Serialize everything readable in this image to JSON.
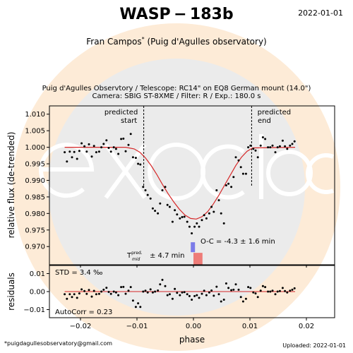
{
  "header": {
    "title": "WASP − 183b",
    "date": "2022-01-01",
    "observer": "Fran Campos",
    "observer_mark": "*",
    "observatory": "(Puig d'Agulles observatory)",
    "setup_line1": "Puig d'Agulles Observtory / Telescope: RC14\" on EQ8 German mount (14.0\")",
    "setup_line2": "Camera: SBIG ST-8XME / Filter: R / Exp.: 180.0 s"
  },
  "footer": {
    "email": "*puigdagullesobservatory@gmail.com",
    "uploaded": "Uploaded: 2022-01-01"
  },
  "watermark": {
    "text": "exoclock",
    "colors": {
      "ring": "#fdebd7",
      "disc": "#ebebeb",
      "letters": "#ffffff"
    }
  },
  "colors": {
    "model": "#d62728",
    "points": "#000000",
    "oc_bar": "#7b7be8",
    "tmid_bar": "#ee7c78",
    "zero_line": "#d62728"
  },
  "chart_data": [
    {
      "type": "scatter",
      "name": "lightcurve",
      "xlabel": "",
      "ylabel": "relative flux (de-trended)",
      "xlim": [
        -0.0255,
        0.025
      ],
      "ylim": [
        0.9645,
        1.0125
      ],
      "yticks": [
        "0.970",
        "0.975",
        "0.980",
        "0.985",
        "0.990",
        "0.995",
        "1.000",
        "1.005",
        "1.010"
      ],
      "ytick_values": [
        0.97,
        0.975,
        0.98,
        0.985,
        0.99,
        0.995,
        1.0,
        1.005,
        1.01
      ],
      "predicted_start": {
        "x": -0.0088,
        "label_line1": "predicted",
        "label_line2": "start"
      },
      "predicted_end": {
        "x": 0.0103,
        "label_line1": "predicted",
        "label_line2": "end"
      },
      "oc_text": "O-C = -4.3 ± 1.6 min",
      "tmid_text": "± 4.7 min",
      "tmid_label": "T",
      "tmid_sup": "pred.",
      "tmid_sub": "mid",
      "oc_bar": {
        "x": -0.0001,
        "y_bottom": 0.9683,
        "y_top": 0.9713
      },
      "tmid_bar": {
        "x0": 0.0,
        "x1": 0.0016,
        "y_bottom": 0.9641,
        "y_top": 0.9681
      },
      "model": {
        "x": [
          -0.0228,
          -0.012,
          -0.0105,
          -0.0095,
          -0.0085,
          -0.0075,
          -0.0065,
          -0.0055,
          -0.0045,
          -0.0035,
          -0.0025,
          -0.0015,
          -0.0005,
          0.0005,
          0.0015,
          0.0025,
          0.0035,
          0.0045,
          0.0055,
          0.0065,
          0.0075,
          0.0085,
          0.0095,
          0.0105,
          0.018
        ],
        "y": [
          1.0,
          1.0,
          0.9995,
          0.9985,
          0.9968,
          0.9945,
          0.9918,
          0.9888,
          0.986,
          0.9835,
          0.9813,
          0.9795,
          0.9785,
          0.9783,
          0.979,
          0.9805,
          0.9828,
          0.9855,
          0.9885,
          0.9915,
          0.9945,
          0.997,
          0.9988,
          0.9998,
          1.0
        ]
      },
      "points": {
        "x": [
          -0.0228,
          -0.0224,
          -0.0219,
          -0.0215,
          -0.0211,
          -0.0206,
          -0.0202,
          -0.0198,
          -0.0193,
          -0.0189,
          -0.0185,
          -0.018,
          -0.0176,
          -0.0172,
          -0.0167,
          -0.0163,
          -0.0159,
          -0.0154,
          -0.015,
          -0.0146,
          -0.0141,
          -0.0137,
          -0.0133,
          -0.0128,
          -0.0124,
          -0.012,
          -0.0115,
          -0.0111,
          -0.0107,
          -0.0102,
          -0.0098,
          -0.0094,
          -0.0089,
          -0.0085,
          -0.0081,
          -0.0076,
          -0.0072,
          -0.0068,
          -0.0063,
          -0.0059,
          -0.0055,
          -0.005,
          -0.0046,
          -0.0042,
          -0.0037,
          -0.0033,
          -0.0029,
          -0.0024,
          -0.002,
          -0.0016,
          -0.0011,
          -0.0007,
          -0.0003,
          0.0002,
          0.0006,
          0.001,
          0.0015,
          0.0019,
          0.0023,
          0.0028,
          0.0032,
          0.0036,
          0.0041,
          0.0045,
          0.0049,
          0.0054,
          0.0058,
          0.0062,
          0.0067,
          0.0071,
          0.0075,
          0.008,
          0.0084,
          0.0088,
          0.0093,
          0.0097,
          0.0101,
          0.0106,
          0.011,
          0.0114,
          0.0119,
          0.0123,
          0.0127,
          0.0132,
          0.0136,
          0.014,
          0.0145,
          0.0149,
          0.0153,
          0.0158,
          0.0162,
          0.0166,
          0.0171,
          0.0175,
          0.0179
        ],
        "y": [
          0.9985,
          0.9957,
          0.9987,
          0.997,
          0.9986,
          0.9965,
          0.9989,
          1.0012,
          1.0003,
          0.9987,
          1.0009,
          0.9972,
          1.0004,
          0.9985,
          0.9987,
          1.0,
          1.001,
          1.0021,
          0.9998,
          0.9987,
          1.0,
          0.9995,
          0.998,
          1.0025,
          1.0026,
          0.9988,
          1.0007,
          1.004,
          0.997,
          0.9968,
          0.995,
          0.9948,
          0.988,
          0.987,
          0.9856,
          0.9845,
          0.9815,
          0.9808,
          0.98,
          0.983,
          0.987,
          0.988,
          0.9826,
          0.982,
          0.9775,
          0.981,
          0.9797,
          0.9785,
          0.9789,
          0.979,
          0.9775,
          0.976,
          0.974,
          0.976,
          0.977,
          0.976,
          0.978,
          0.9795,
          0.9785,
          0.98,
          0.982,
          0.9805,
          0.987,
          0.984,
          0.98,
          0.977,
          0.9885,
          0.989,
          0.988,
          0.991,
          0.997,
          0.996,
          0.994,
          0.992,
          0.992,
          1.0,
          1.0005,
          0.9995,
          0.999,
          0.997,
          1.0005,
          1.003,
          1.0025,
          1.0,
          1.0,
          1.0005,
          0.9985,
          1.0,
          1.0003,
          1.002,
          1.0003,
          0.9995,
          1.0005,
          1.001,
          1.0018
        ]
      }
    },
    {
      "type": "scatter",
      "name": "residuals",
      "xlabel": "phase",
      "ylabel": "residuals",
      "xlim": [
        -0.0255,
        0.025
      ],
      "ylim": [
        -0.0145,
        0.0145
      ],
      "yticks": [
        "−0.01",
        "0.00",
        "0.01"
      ],
      "ytick_values": [
        -0.01,
        0.0,
        0.01
      ],
      "xticks": [
        "−0.02",
        "−0.01",
        "0.00",
        "0.01",
        "0.02"
      ],
      "xtick_values": [
        -0.02,
        -0.01,
        0.0,
        0.01,
        0.02
      ],
      "std_text": "STD = 3.4 ‰",
      "autocorr_text": "AutoCorr = 0.23",
      "points": {
        "x": [
          -0.0228,
          -0.0224,
          -0.0219,
          -0.0215,
          -0.0211,
          -0.0206,
          -0.0202,
          -0.0198,
          -0.0193,
          -0.0189,
          -0.0185,
          -0.018,
          -0.0176,
          -0.0172,
          -0.0167,
          -0.0163,
          -0.0159,
          -0.0154,
          -0.015,
          -0.0146,
          -0.0141,
          -0.0137,
          -0.0133,
          -0.0128,
          -0.0124,
          -0.012,
          -0.0115,
          -0.0111,
          -0.0107,
          -0.0102,
          -0.0098,
          -0.0094,
          -0.0089,
          -0.0085,
          -0.0081,
          -0.0076,
          -0.0072,
          -0.0068,
          -0.0063,
          -0.0059,
          -0.0055,
          -0.005,
          -0.0046,
          -0.0042,
          -0.0037,
          -0.0033,
          -0.0029,
          -0.0024,
          -0.002,
          -0.0016,
          -0.0011,
          -0.0007,
          -0.0003,
          0.0002,
          0.0006,
          0.001,
          0.0015,
          0.0019,
          0.0023,
          0.0028,
          0.0032,
          0.0036,
          0.0041,
          0.0045,
          0.0049,
          0.0054,
          0.0058,
          0.0062,
          0.0067,
          0.0071,
          0.0075,
          0.008,
          0.0084,
          0.0088,
          0.0093,
          0.0097,
          0.0101,
          0.0106,
          0.011,
          0.0114,
          0.0119,
          0.0123,
          0.0127,
          0.0132,
          0.0136,
          0.014,
          0.0145,
          0.0149,
          0.0153,
          0.0158,
          0.0162,
          0.0166,
          0.0171,
          0.0175,
          0.0179
        ],
        "y": [
          -0.0015,
          -0.004,
          -0.0015,
          -0.003,
          -0.0015,
          -0.0035,
          -0.001,
          0.0012,
          0.0003,
          -0.0013,
          0.0009,
          -0.0028,
          0.0004,
          -0.0015,
          -0.0013,
          0.0,
          0.001,
          0.0021,
          -0.0002,
          -0.0013,
          0.0,
          -0.0005,
          -0.002,
          0.0025,
          0.0026,
          -0.0012,
          0.0005,
          0.0025,
          -0.005,
          -0.0085,
          -0.0065,
          -0.0085,
          0.0,
          0.0005,
          -0.0005,
          0.0012,
          -0.0005,
          0.0,
          0.0006,
          0.004,
          0.0065,
          0.003,
          -0.002,
          -0.0015,
          -0.004,
          0.0015,
          -0.0007,
          -0.002,
          -0.0005,
          -0.0003,
          -0.0015,
          -0.0025,
          -0.0045,
          -0.0025,
          -0.002,
          -0.0035,
          -0.0012,
          0.0005,
          -0.002,
          -0.0005,
          0.0006,
          -0.0023,
          0.0027,
          -0.0015,
          -0.0055,
          -0.0045,
          0.0045,
          0.002,
          0.0008,
          0.001,
          0.004,
          0.001,
          -0.003,
          -0.0055,
          -0.004,
          0.0025,
          0.002,
          -0.0005,
          -0.001,
          -0.003,
          0.0005,
          0.003,
          0.0025,
          0.0,
          0.0,
          0.0005,
          -0.0015,
          0.0,
          0.0003,
          0.002,
          0.0003,
          -0.0005,
          0.0005,
          0.001,
          0.0018
        ]
      }
    }
  ]
}
